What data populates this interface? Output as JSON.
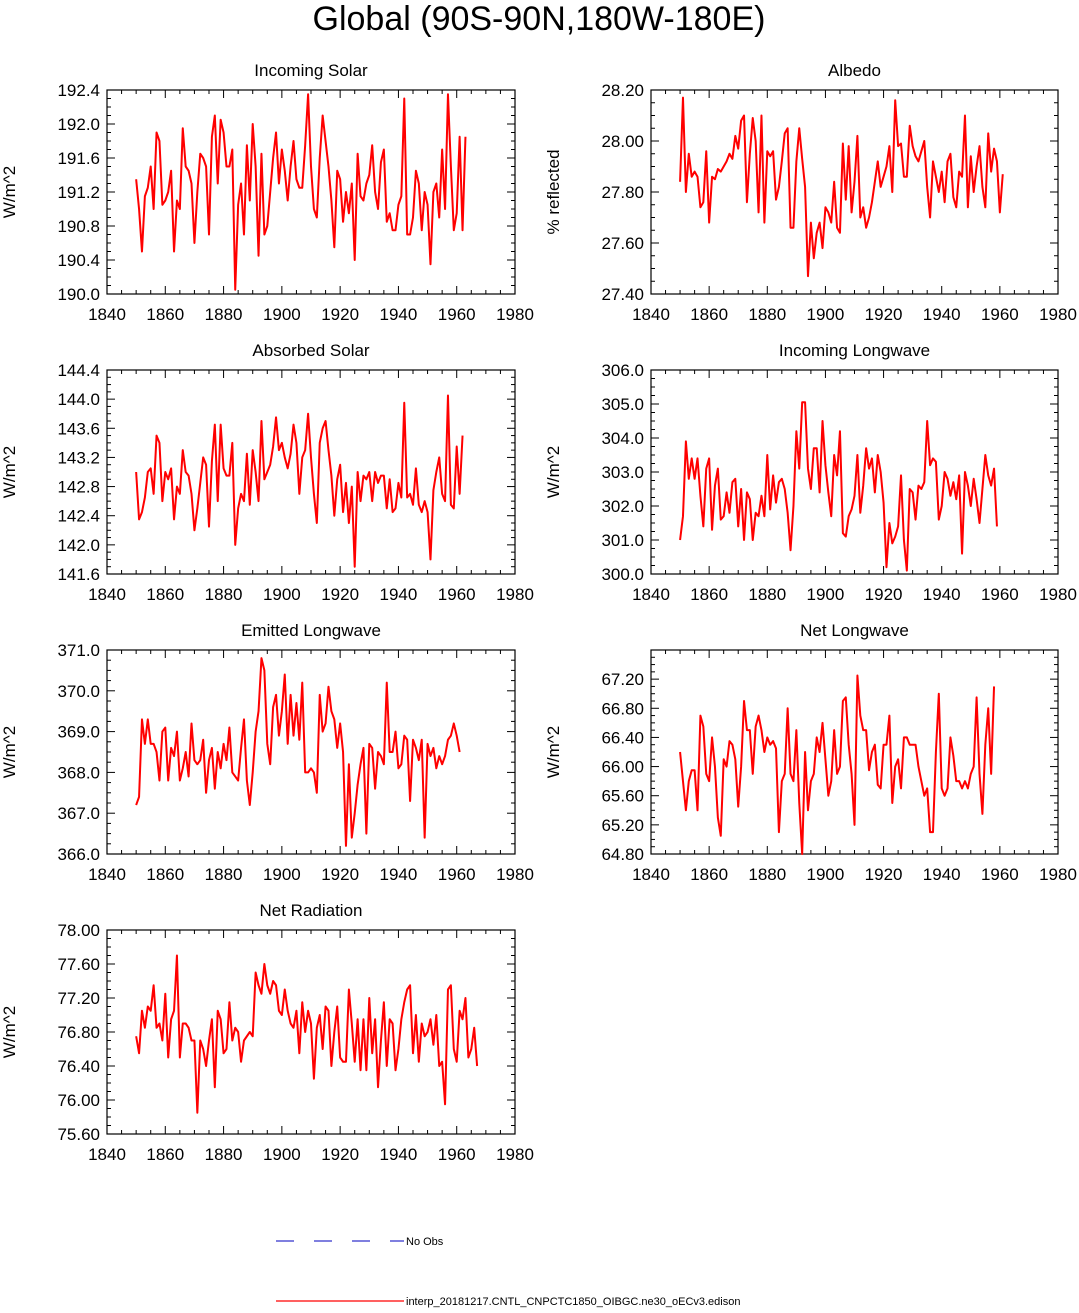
{
  "figure_title": "Global (90S-90N,180W-180E)",
  "legend": [
    {
      "label": "No Obs",
      "color": "#3333cc",
      "style": "dashed"
    },
    {
      "label": "interp_20181217.CNTL_CNPCTC1850_OIBGC.ne30_oECv3.edison",
      "color": "#ff0000",
      "style": "solid"
    }
  ],
  "chart_data": [
    {
      "type": "line",
      "title": "Incoming Solar",
      "ylabel": "W/m^2",
      "xlim": [
        1840,
        1980
      ],
      "x_ticks": [
        "1840",
        "1860",
        "1880",
        "1900",
        "1920",
        "1940",
        "1960",
        "1980"
      ],
      "ylim": [
        190.0,
        192.4
      ],
      "y_ticks": [
        "190.0",
        "190.4",
        "190.8",
        "191.2",
        "191.6",
        "192.0",
        "192.4"
      ],
      "x_start": 1850,
      "series": [
        {
          "color": "#ff0000",
          "values": [
            191.35,
            191.0,
            190.5,
            191.15,
            191.25,
            191.5,
            191.0,
            191.9,
            191.8,
            191.05,
            191.1,
            191.2,
            191.45,
            190.5,
            191.1,
            191.0,
            191.95,
            191.5,
            191.45,
            191.3,
            190.6,
            191.2,
            191.65,
            191.6,
            191.5,
            190.7,
            191.85,
            192.1,
            191.3,
            192.05,
            191.9,
            191.5,
            191.5,
            191.7,
            190.05,
            191.05,
            191.3,
            190.7,
            191.75,
            191.1,
            192.0,
            191.5,
            190.45,
            191.65,
            190.7,
            190.8,
            191.2,
            191.6,
            191.9,
            191.3,
            191.7,
            191.45,
            191.1,
            191.5,
            191.8,
            191.35,
            191.25,
            191.25,
            191.75,
            192.35,
            191.5,
            191.0,
            190.9,
            191.6,
            192.1,
            191.8,
            191.5,
            191.1,
            190.55,
            191.45,
            191.35,
            190.85,
            191.2,
            190.95,
            191.3,
            190.4,
            191.65,
            191.15,
            191.1,
            191.3,
            191.4,
            191.75,
            191.2,
            191.0,
            191.55,
            191.7,
            190.85,
            190.95,
            190.75,
            190.75,
            191.05,
            191.15,
            192.3,
            190.7,
            190.7,
            190.9,
            191.45,
            191.3,
            190.75,
            191.2,
            191.05,
            190.35,
            191.2,
            191.3,
            190.9,
            191.7,
            191.0,
            192.35,
            191.5,
            190.75,
            190.95,
            191.85,
            190.75,
            191.85
          ]
        }
      ]
    },
    {
      "type": "line",
      "title": "Albedo",
      "ylabel": "% reflected",
      "xlim": [
        1840,
        1980
      ],
      "x_ticks": [
        "1840",
        "1860",
        "1880",
        "1900",
        "1920",
        "1940",
        "1960",
        "1980"
      ],
      "ylim": [
        27.4,
        28.2
      ],
      "y_ticks": [
        "27.40",
        "27.60",
        "27.80",
        "28.00",
        "28.20"
      ],
      "x_start": 1850,
      "series": [
        {
          "color": "#ff0000",
          "values": [
            27.84,
            28.17,
            27.8,
            27.95,
            27.86,
            27.88,
            27.86,
            27.74,
            27.76,
            27.96,
            27.68,
            27.86,
            27.85,
            27.89,
            27.88,
            27.9,
            27.92,
            27.95,
            27.93,
            28.02,
            27.97,
            28.08,
            28.1,
            27.76,
            27.95,
            28.09,
            28.0,
            27.72,
            28.1,
            27.68,
            27.96,
            27.94,
            27.96,
            27.77,
            27.82,
            27.92,
            28.03,
            28.05,
            27.66,
            27.66,
            27.92,
            28.05,
            27.93,
            27.82,
            27.47,
            27.68,
            27.54,
            27.64,
            27.68,
            27.58,
            27.74,
            27.72,
            27.68,
            27.84,
            27.66,
            27.64,
            27.99,
            27.77,
            27.98,
            27.72,
            27.84,
            28.02,
            27.7,
            27.74,
            27.66,
            27.7,
            27.76,
            27.84,
            27.92,
            27.82,
            27.86,
            27.9,
            27.98,
            27.8,
            28.16,
            27.98,
            27.99,
            27.86,
            27.86,
            28.06,
            27.98,
            27.94,
            27.92,
            27.96,
            28.0,
            27.82,
            27.7,
            27.92,
            27.86,
            27.8,
            27.88,
            27.76,
            27.92,
            27.95,
            27.78,
            27.74,
            27.88,
            27.86,
            28.1,
            27.74,
            27.94,
            27.8,
            27.9,
            27.98,
            27.82,
            27.74,
            28.03,
            27.88,
            27.97,
            27.92,
            27.72,
            27.87
          ]
        }
      ]
    },
    {
      "type": "line",
      "title": "Absorbed Solar",
      "ylabel": "W/m^2",
      "xlim": [
        1840,
        1980
      ],
      "x_ticks": [
        "1840",
        "1860",
        "1880",
        "1900",
        "1920",
        "1940",
        "1960",
        "1980"
      ],
      "ylim": [
        141.6,
        144.4
      ],
      "y_ticks": [
        "141.6",
        "142.0",
        "142.4",
        "142.8",
        "143.2",
        "143.6",
        "144.0",
        "144.4"
      ],
      "x_start": 1850,
      "series": [
        {
          "color": "#ff0000",
          "values": [
            143.0,
            142.35,
            142.45,
            142.65,
            143.0,
            143.05,
            142.7,
            143.5,
            143.4,
            142.6,
            143.0,
            142.9,
            143.05,
            142.35,
            142.8,
            142.7,
            143.3,
            143.0,
            142.95,
            142.7,
            142.2,
            142.5,
            142.85,
            143.2,
            143.1,
            142.25,
            143.15,
            143.65,
            142.6,
            143.65,
            143.05,
            142.95,
            142.95,
            143.4,
            142.0,
            142.5,
            142.7,
            142.6,
            143.25,
            142.55,
            143.3,
            143.0,
            142.6,
            143.7,
            142.9,
            143.0,
            143.1,
            143.35,
            143.75,
            143.3,
            143.4,
            143.2,
            143.05,
            143.25,
            143.65,
            143.4,
            142.7,
            143.2,
            143.3,
            143.8,
            143.2,
            142.7,
            142.3,
            143.4,
            143.6,
            143.7,
            143.3,
            142.95,
            142.4,
            142.9,
            143.1,
            142.45,
            142.85,
            142.3,
            142.8,
            141.7,
            143.0,
            142.6,
            142.95,
            142.9,
            143.0,
            142.6,
            143.0,
            142.85,
            142.95,
            142.95,
            142.5,
            142.9,
            142.45,
            142.5,
            142.85,
            142.65,
            143.95,
            142.65,
            142.7,
            142.55,
            143.05,
            142.55,
            142.45,
            142.6,
            142.45,
            141.8,
            142.75,
            143.0,
            143.2,
            142.7,
            142.6,
            144.05,
            142.55,
            142.5,
            143.35,
            142.7,
            143.5
          ]
        }
      ]
    },
    {
      "type": "line",
      "title": "Incoming Longwave",
      "ylabel": "W/m^2",
      "xlim": [
        1840,
        1980
      ],
      "x_ticks": [
        "1840",
        "1860",
        "1880",
        "1900",
        "1920",
        "1940",
        "1960",
        "1980"
      ],
      "ylim": [
        300.0,
        306.0
      ],
      "y_ticks": [
        "300.0",
        "301.0",
        "302.0",
        "303.0",
        "304.0",
        "305.0",
        "306.0"
      ],
      "x_start": 1850,
      "series": [
        {
          "color": "#ff0000",
          "values": [
            301.0,
            301.7,
            303.9,
            302.8,
            303.4,
            302.8,
            303.4,
            302.3,
            301.4,
            303.1,
            303.4,
            301.3,
            302.6,
            303.1,
            301.6,
            301.7,
            302.4,
            301.8,
            302.7,
            302.8,
            301.4,
            302.5,
            301.0,
            302.4,
            302.2,
            301.0,
            301.8,
            301.7,
            302.3,
            301.7,
            303.5,
            301.9,
            302.9,
            302.1,
            302.7,
            302.8,
            302.5,
            301.8,
            300.7,
            302.0,
            304.2,
            303.1,
            305.05,
            305.05,
            303.1,
            302.5,
            303.7,
            303.7,
            302.4,
            304.5,
            303.2,
            302.4,
            301.7,
            303.5,
            302.9,
            304.2,
            301.2,
            301.1,
            301.7,
            301.9,
            302.3,
            303.5,
            301.8,
            302.6,
            303.7,
            303.1,
            303.4,
            302.4,
            303.5,
            303.0,
            302.1,
            300.2,
            301.5,
            300.9,
            301.1,
            301.4,
            302.9,
            301.0,
            300.1,
            302.5,
            302.4,
            301.6,
            302.6,
            302.5,
            302.7,
            304.5,
            303.2,
            303.4,
            303.3,
            301.6,
            302.0,
            303.0,
            302.8,
            302.3,
            302.7,
            302.2,
            302.9,
            300.6,
            303.0,
            302.6,
            302.0,
            302.8,
            302.2,
            301.5,
            302.5,
            303.5,
            302.9,
            302.6,
            303.1,
            301.4
          ]
        }
      ]
    },
    {
      "type": "line",
      "title": "Emitted Longwave",
      "ylabel": "W/m^2",
      "xlim": [
        1840,
        1980
      ],
      "x_ticks": [
        "1840",
        "1860",
        "1880",
        "1900",
        "1920",
        "1940",
        "1960",
        "1980"
      ],
      "ylim": [
        366.0,
        371.0
      ],
      "y_ticks": [
        "366.0",
        "367.0",
        "368.0",
        "369.0",
        "370.0",
        "371.0"
      ],
      "x_start": 1850,
      "series": [
        {
          "color": "#ff0000",
          "values": [
            367.2,
            367.4,
            369.3,
            368.7,
            369.3,
            368.7,
            368.7,
            368.5,
            367.8,
            369.0,
            369.1,
            367.8,
            368.6,
            368.4,
            369.0,
            367.8,
            368.1,
            368.5,
            367.9,
            369.2,
            368.3,
            368.2,
            368.3,
            368.8,
            367.5,
            368.3,
            368.6,
            367.6,
            368.5,
            368.1,
            368.7,
            368.3,
            369.1,
            368.0,
            367.9,
            367.8,
            368.6,
            369.3,
            367.8,
            367.2,
            368.0,
            369.0,
            369.5,
            370.8,
            370.5,
            368.7,
            368.2,
            369.6,
            369.9,
            368.9,
            369.5,
            370.4,
            368.7,
            369.9,
            368.9,
            369.7,
            368.8,
            370.2,
            368.0,
            368.0,
            368.1,
            368.0,
            367.5,
            369.9,
            369.0,
            369.2,
            370.1,
            369.5,
            369.3,
            368.6,
            369.2,
            368.5,
            366.2,
            368.2,
            366.4,
            367.0,
            367.7,
            368.2,
            368.6,
            366.5,
            368.7,
            368.6,
            367.6,
            368.5,
            368.4,
            368.2,
            370.2,
            368.5,
            368.5,
            369.0,
            368.1,
            368.2,
            368.9,
            368.8,
            367.3,
            368.8,
            368.6,
            368.3,
            368.8,
            366.4,
            368.7,
            368.4,
            368.6,
            368.1,
            368.4,
            368.2,
            368.4,
            368.8,
            368.9,
            369.2,
            368.9,
            368.5
          ]
        }
      ]
    },
    {
      "type": "line",
      "title": "Net Longwave",
      "ylabel": "W/m^2",
      "xlim": [
        1840,
        1980
      ],
      "x_ticks": [
        "1840",
        "1860",
        "1880",
        "1900",
        "1920",
        "1940",
        "1960",
        "1980"
      ],
      "ylim": [
        64.8,
        67.6
      ],
      "y_ticks": [
        "64.80",
        "65.20",
        "65.60",
        "66.00",
        "66.40",
        "66.80",
        "67.20"
      ],
      "x_start": 1850,
      "series": [
        {
          "color": "#ff0000",
          "values": [
            66.2,
            65.8,
            65.4,
            65.8,
            65.95,
            65.95,
            65.4,
            66.7,
            66.55,
            65.9,
            65.8,
            66.4,
            66.0,
            65.3,
            65.05,
            66.1,
            66.0,
            66.35,
            66.3,
            66.1,
            65.45,
            66.0,
            66.9,
            66.5,
            66.5,
            65.9,
            66.55,
            66.7,
            66.5,
            66.2,
            66.4,
            66.3,
            66.35,
            66.25,
            65.1,
            65.8,
            65.9,
            66.8,
            65.9,
            65.8,
            66.5,
            65.5,
            64.8,
            66.2,
            65.4,
            65.8,
            65.9,
            66.4,
            66.2,
            66.6,
            66.1,
            65.6,
            65.8,
            66.5,
            65.9,
            66.0,
            66.9,
            66.95,
            66.3,
            65.9,
            65.2,
            67.25,
            66.7,
            66.5,
            66.5,
            65.95,
            66.2,
            66.3,
            65.75,
            65.7,
            66.3,
            66.3,
            66.7,
            65.5,
            66.0,
            66.1,
            65.7,
            66.4,
            66.4,
            66.3,
            66.3,
            66.3,
            66.0,
            65.8,
            65.6,
            65.7,
            65.1,
            65.1,
            66.2,
            67.0,
            65.7,
            65.6,
            65.7,
            66.4,
            66.15,
            65.8,
            65.8,
            65.7,
            65.8,
            65.7,
            65.9,
            66.0,
            66.95,
            65.9,
            65.35,
            66.3,
            66.8,
            65.9,
            67.1
          ]
        }
      ]
    },
    {
      "type": "line",
      "title": "Net Radiation",
      "ylabel": "W/m^2",
      "xlim": [
        1840,
        1980
      ],
      "x_ticks": [
        "1840",
        "1860",
        "1880",
        "1900",
        "1920",
        "1940",
        "1960",
        "1980"
      ],
      "ylim": [
        75.6,
        78.0
      ],
      "y_ticks": [
        "75.60",
        "76.00",
        "76.40",
        "76.80",
        "77.20",
        "77.60",
        "78.00"
      ],
      "x_start": 1850,
      "series": [
        {
          "color": "#ff0000",
          "values": [
            76.75,
            76.55,
            77.05,
            76.85,
            77.1,
            77.05,
            77.35,
            76.85,
            76.9,
            76.7,
            77.25,
            76.5,
            76.95,
            77.05,
            77.7,
            76.5,
            76.9,
            76.9,
            76.85,
            76.7,
            76.7,
            75.85,
            76.7,
            76.6,
            76.4,
            76.7,
            76.95,
            76.15,
            77.05,
            76.95,
            76.55,
            76.6,
            77.15,
            76.7,
            76.85,
            76.8,
            76.45,
            76.7,
            76.75,
            76.8,
            76.75,
            77.5,
            77.35,
            77.25,
            77.6,
            77.35,
            77.25,
            77.4,
            77.35,
            77.05,
            77.0,
            77.3,
            77.05,
            76.9,
            76.85,
            77.05,
            76.55,
            77.15,
            76.8,
            77.05,
            76.9,
            76.25,
            76.85,
            77.0,
            76.6,
            77.1,
            77.05,
            76.4,
            76.8,
            77.1,
            76.5,
            76.45,
            76.45,
            77.3,
            76.9,
            76.45,
            76.95,
            76.35,
            76.95,
            76.35,
            77.2,
            76.55,
            76.95,
            76.15,
            76.7,
            77.15,
            76.4,
            76.95,
            76.9,
            76.35,
            76.6,
            76.95,
            77.15,
            77.3,
            77.35,
            76.55,
            77.0,
            76.45,
            76.9,
            76.75,
            76.8,
            76.95,
            76.65,
            77.0,
            76.4,
            76.45,
            75.95,
            77.3,
            77.35,
            76.6,
            76.45,
            77.05,
            76.95,
            77.2,
            76.5,
            76.6,
            76.85,
            76.4
          ]
        }
      ]
    }
  ]
}
